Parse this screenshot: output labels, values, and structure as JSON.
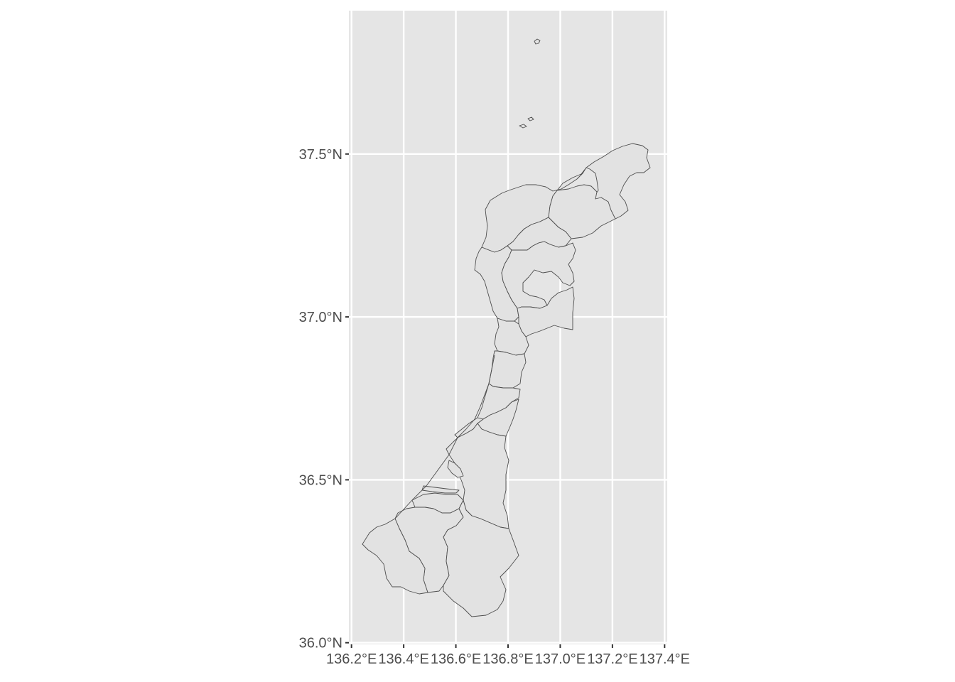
{
  "chart_data": {
    "type": "map",
    "region": "Ishikawa Prefecture municipalities",
    "x_axis": {
      "ticks": [
        136.2,
        136.4,
        136.6,
        136.8,
        137.0,
        137.2,
        137.4
      ],
      "tick_labels": [
        "136.2°E",
        "136.4°E",
        "136.6°E",
        "136.8°E",
        "137.0°E",
        "137.2°E",
        "137.4°E"
      ],
      "range": [
        136.19,
        137.41
      ]
    },
    "y_axis": {
      "ticks": [
        36.0,
        36.5,
        37.0,
        37.5
      ],
      "tick_labels": [
        "36.0°N",
        "36.5°N",
        "37.0°N",
        "37.5°N"
      ],
      "range": [
        35.995,
        37.94
      ]
    },
    "grid": true,
    "colors": {
      "panel_background": "#e5e5e5",
      "grid": "#ffffff",
      "fill": "#e2e2e2",
      "border": "#4d4d4d"
    }
  }
}
